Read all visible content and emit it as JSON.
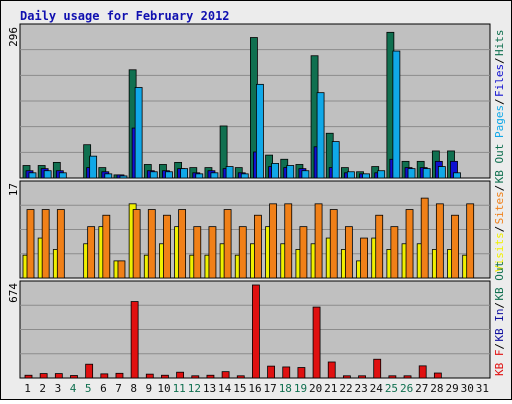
{
  "title": "Daily usage for February 2012",
  "colors": {
    "frame_bg": "#ececec",
    "panel_bg": "#c0c0c0",
    "grid": "#8c8c8c",
    "title": "#1010b0",
    "hits": "#107050",
    "files": "#1010d0",
    "pages": "#10a8e8",
    "visits": "#f0f000",
    "sites": "#f08018",
    "kbf": "#e01010",
    "kbin": "#1010a0",
    "kbout": "#107050",
    "weekend_day": "#107050",
    "weekday": "#101010"
  },
  "chart_data": [
    {
      "type": "bar",
      "panel": "top",
      "ymax_label": "296",
      "legend": [
        "Pages",
        "Files",
        "Hits"
      ],
      "ylim": [
        0,
        296
      ],
      "series": [
        {
          "name": "Hits",
          "values": [
            24,
            24,
            30,
            0,
            64,
            20,
            6,
            208,
            26,
            26,
            30,
            20,
            20,
            100,
            20,
            270,
            44,
            36,
            26,
            235,
            86,
            20,
            12,
            22,
            280,
            32,
            32,
            52,
            52,
            0
          ]
        },
        {
          "name": "Files",
          "values": [
            14,
            18,
            14,
            0,
            20,
            12,
            6,
            96,
            14,
            14,
            18,
            10,
            14,
            18,
            10,
            50,
            22,
            20,
            18,
            60,
            20,
            10,
            8,
            10,
            36,
            20,
            20,
            32,
            32,
            0
          ]
        },
        {
          "name": "Pages",
          "values": [
            10,
            14,
            10,
            0,
            42,
            8,
            4,
            174,
            12,
            12,
            18,
            8,
            10,
            22,
            8,
            180,
            28,
            24,
            14,
            164,
            70,
            12,
            8,
            14,
            244,
            18,
            18,
            22,
            10,
            0
          ]
        }
      ]
    },
    {
      "type": "bar",
      "panel": "middle",
      "ymax_label": "17",
      "legend": [
        "Visits",
        "Sites",
        "KB Out"
      ],
      "ylim": [
        0,
        17
      ],
      "series": [
        {
          "name": "Sites",
          "values": [
            12,
            12,
            12,
            0,
            9,
            11,
            3,
            12,
            12,
            11,
            12,
            9,
            9,
            12,
            9,
            11,
            13,
            13,
            9,
            13,
            12,
            9,
            7,
            11,
            9,
            12,
            14,
            13,
            11,
            13
          ]
        },
        {
          "name": "Visits",
          "values": [
            4,
            7,
            5,
            0,
            6,
            9,
            3,
            13,
            4,
            6,
            9,
            4,
            4,
            6,
            4,
            6,
            9,
            6,
            5,
            6,
            7,
            5,
            3,
            7,
            5,
            6,
            6,
            5,
            5,
            4
          ]
        }
      ]
    },
    {
      "type": "bar",
      "panel": "bottom",
      "ymax_label": "674",
      "legend": [
        "KB F",
        "KB In",
        "KB Out"
      ],
      "ylim": [
        0,
        674
      ],
      "series": [
        {
          "name": "KB F",
          "values": [
            20,
            32,
            32,
            18,
            100,
            30,
            34,
            554,
            28,
            20,
            42,
            16,
            20,
            46,
            16,
            674,
            86,
            80,
            76,
            514,
            116,
            16,
            16,
            136,
            16,
            16,
            88,
            36,
            0,
            0
          ]
        }
      ]
    }
  ],
  "x_labels": [
    {
      "label": "1",
      "weekend": false
    },
    {
      "label": "2",
      "weekend": false
    },
    {
      "label": "3",
      "weekend": false
    },
    {
      "label": "4",
      "weekend": true
    },
    {
      "label": "5",
      "weekend": true
    },
    {
      "label": "6",
      "weekend": false
    },
    {
      "label": "7",
      "weekend": false
    },
    {
      "label": "8",
      "weekend": false
    },
    {
      "label": "9",
      "weekend": false
    },
    {
      "label": "10",
      "weekend": false
    },
    {
      "label": "11",
      "weekend": true
    },
    {
      "label": "12",
      "weekend": true
    },
    {
      "label": "13",
      "weekend": false
    },
    {
      "label": "14",
      "weekend": false
    },
    {
      "label": "15",
      "weekend": false
    },
    {
      "label": "16",
      "weekend": false
    },
    {
      "label": "17",
      "weekend": false
    },
    {
      "label": "18",
      "weekend": true
    },
    {
      "label": "19",
      "weekend": true
    },
    {
      "label": "20",
      "weekend": false
    },
    {
      "label": "21",
      "weekend": false
    },
    {
      "label": "22",
      "weekend": false
    },
    {
      "label": "23",
      "weekend": false
    },
    {
      "label": "24",
      "weekend": false
    },
    {
      "label": "25",
      "weekend": true
    },
    {
      "label": "26",
      "weekend": true
    },
    {
      "label": "27",
      "weekend": false
    },
    {
      "label": "28",
      "weekend": false
    },
    {
      "label": "29",
      "weekend": false
    },
    {
      "label": "30",
      "weekend": false
    },
    {
      "label": "31",
      "weekend": false
    }
  ]
}
